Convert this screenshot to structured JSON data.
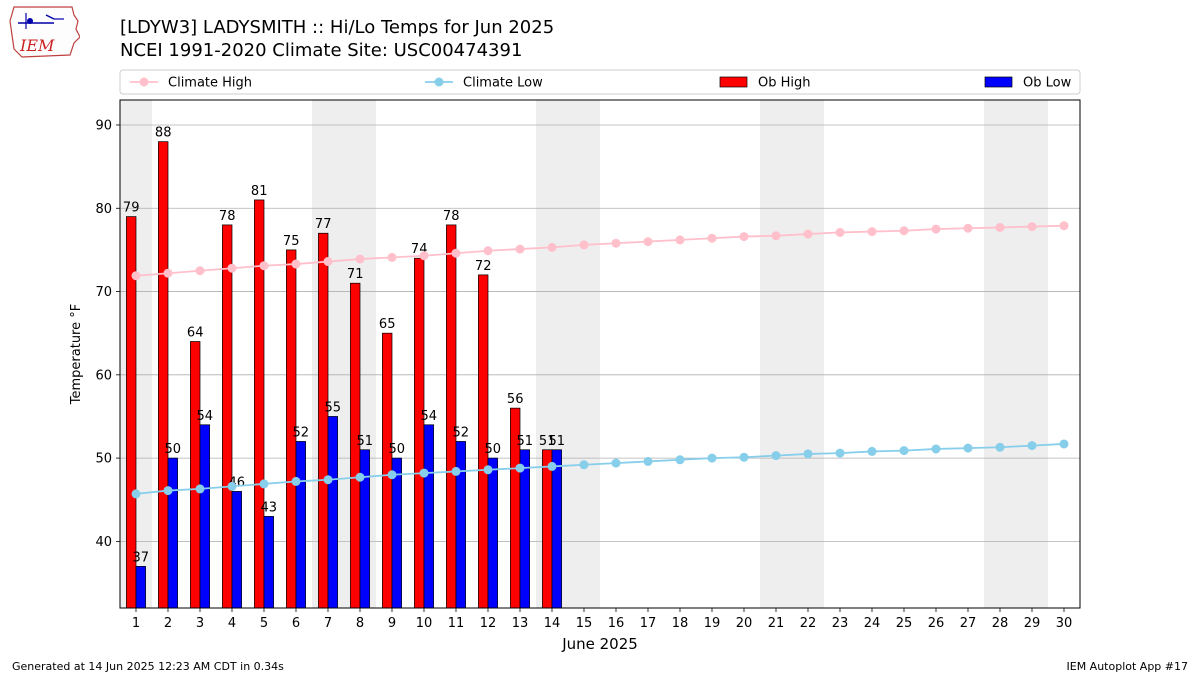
{
  "header": {
    "title_line1": "[LDYW3] LADYSMITH :: Hi/Lo Temps for Jun 2025",
    "title_line2": "NCEI 1991-2020 Climate Site: USC00474391",
    "logo_text": "IEM"
  },
  "footer": {
    "generated": "Generated at 14 Jun 2025 12:23 AM CDT in 0.34s",
    "app": "IEM Autoplot App #17"
  },
  "chart_data": {
    "type": "bar",
    "xlabel": "June 2025",
    "ylabel": "Temperature °F",
    "ylim": [
      32,
      93
    ],
    "xlim": [
      0.5,
      30.5
    ],
    "yticks": [
      40,
      50,
      60,
      70,
      80,
      90
    ],
    "days": [
      1,
      2,
      3,
      4,
      5,
      6,
      7,
      8,
      9,
      10,
      11,
      12,
      13,
      14,
      15,
      16,
      17,
      18,
      19,
      20,
      21,
      22,
      23,
      24,
      25,
      26,
      27,
      28,
      29,
      30
    ],
    "weekend_days": [
      1,
      7,
      8,
      14,
      15,
      21,
      22,
      28,
      29
    ],
    "grid": "horizontal",
    "legend_position": "top",
    "series": [
      {
        "name": "Climate High",
        "kind": "line",
        "color": "#ffc0cb",
        "values": [
          71.9,
          72.2,
          72.5,
          72.8,
          73.1,
          73.3,
          73.6,
          73.9,
          74.1,
          74.3,
          74.6,
          74.9,
          75.1,
          75.3,
          75.6,
          75.8,
          76.0,
          76.2,
          76.4,
          76.6,
          76.7,
          76.9,
          77.1,
          77.2,
          77.3,
          77.5,
          77.6,
          77.7,
          77.8,
          77.9
        ]
      },
      {
        "name": "Climate Low",
        "kind": "line",
        "color": "#87ceeb",
        "values": [
          45.7,
          46.1,
          46.3,
          46.6,
          46.9,
          47.2,
          47.4,
          47.7,
          48.0,
          48.2,
          48.4,
          48.6,
          48.8,
          49.0,
          49.2,
          49.4,
          49.6,
          49.8,
          50.0,
          50.1,
          50.3,
          50.5,
          50.6,
          50.8,
          50.9,
          51.1,
          51.2,
          51.3,
          51.5,
          51.7
        ]
      },
      {
        "name": "Ob High",
        "kind": "bar",
        "color": "#ff0000",
        "values": [
          79,
          88,
          64,
          78,
          81,
          75,
          77,
          71,
          65,
          74,
          78,
          72,
          56,
          51
        ]
      },
      {
        "name": "Ob Low",
        "kind": "bar",
        "color": "#0000ff",
        "values": [
          37,
          50,
          54,
          46,
          43,
          52,
          55,
          51,
          50,
          54,
          52,
          50,
          51,
          51
        ]
      }
    ]
  }
}
